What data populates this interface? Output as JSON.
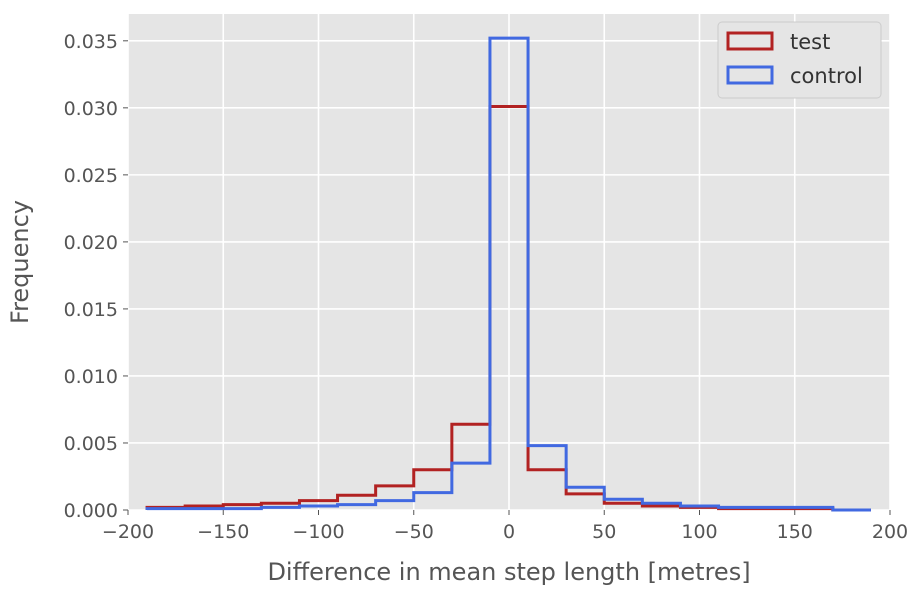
{
  "chart_data": {
    "type": "histogram",
    "title": "",
    "xlabel": "Difference in mean step length [metres]",
    "ylabel": "Frequency",
    "xlim": [
      -200,
      200
    ],
    "ylim": [
      0,
      0.037
    ],
    "x_ticks": [
      -200,
      -150,
      -100,
      -50,
      0,
      50,
      100,
      150,
      200
    ],
    "x_tick_labels": [
      "−200",
      "−150",
      "−100",
      "−50",
      "0",
      "50",
      "100",
      "150",
      "200"
    ],
    "y_ticks": [
      0.0,
      0.005,
      0.01,
      0.015,
      0.02,
      0.025,
      0.03,
      0.035
    ],
    "y_tick_labels": [
      "0.000",
      "0.005",
      "0.010",
      "0.015",
      "0.020",
      "0.025",
      "0.030",
      "0.035"
    ],
    "grid": true,
    "legend_position": "top-right",
    "bin_edges": [
      -190,
      -170,
      -150,
      -130,
      -110,
      -90,
      -70,
      -50,
      -30,
      -10,
      10,
      30,
      50,
      70,
      90,
      110,
      130,
      150,
      170,
      190
    ],
    "series": [
      {
        "name": "test",
        "color": "#b22222",
        "values": [
          0.0002,
          0.0003,
          0.0004,
          0.0005,
          0.0007,
          0.0011,
          0.0018,
          0.003,
          0.0064,
          0.0301,
          0.003,
          0.0012,
          0.0005,
          0.0003,
          0.0002,
          0.0001,
          0.0001,
          0.0001,
          0.0
        ]
      },
      {
        "name": "control",
        "color": "#4169e1",
        "values": [
          0.0001,
          0.0001,
          0.0001,
          0.0002,
          0.0003,
          0.0004,
          0.0007,
          0.0013,
          0.0035,
          0.0352,
          0.0048,
          0.0017,
          0.0008,
          0.0005,
          0.0003,
          0.0002,
          0.0002,
          0.0002,
          0.0
        ]
      }
    ]
  },
  "colors": {
    "plot_background": "#e5e5e5",
    "grid": "#ffffff",
    "tick_text": "#555555"
  }
}
